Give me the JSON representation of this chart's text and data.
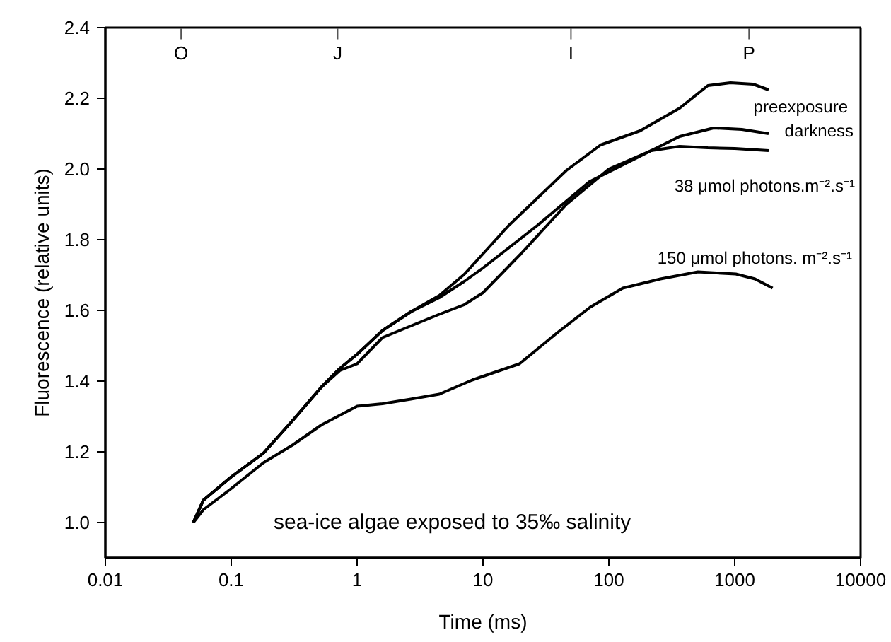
{
  "chart_data": {
    "type": "line",
    "xlabel": "Time (ms)",
    "ylabel": "Fluorescence (relative units)",
    "log": "x",
    "xlim": [
      0.01,
      10000
    ],
    "ylim": [
      0.9,
      2.4
    ],
    "xticks": [
      0.01,
      0.1,
      1,
      10,
      100,
      1000,
      10000
    ],
    "yticks": [
      {
        "value": 1.0,
        "label": "1.0"
      },
      1.2,
      1.4,
      1.6,
      1.8,
      {
        "value": 2.0,
        "label": "2.0"
      },
      2.2,
      2.4
    ],
    "ref_lines": [
      {
        "axis": "x",
        "value": 0.04,
        "label": "O"
      },
      {
        "axis": "x",
        "value": 0.7,
        "label": "J"
      },
      {
        "axis": "x",
        "value": 50,
        "label": "I"
      },
      {
        "axis": "x",
        "value": 1300,
        "label": "P"
      }
    ],
    "grid": false,
    "marker": "none",
    "line_style": "solid",
    "series": [
      {
        "color": "#000000",
        "x": [
          0.05,
          0.06,
          0.1,
          0.18,
          0.31,
          0.52,
          0.73,
          1.0,
          1.59,
          2.67,
          4.5,
          7.1,
          10,
          16,
          46,
          86,
          177,
          365,
          612,
          925,
          1400,
          1860
        ],
        "values": [
          1.0,
          1.063,
          1.129,
          1.196,
          1.29,
          1.383,
          1.436,
          1.476,
          1.543,
          1.596,
          1.642,
          1.702,
          1.76,
          1.84,
          1.996,
          2.068,
          2.108,
          2.172,
          2.236,
          2.244,
          2.24,
          2.224
        ]
      },
      {
        "color": "#000000",
        "x": [
          0.05,
          0.06,
          0.1,
          0.18,
          0.31,
          0.52,
          0.73,
          1.0,
          1.59,
          2.67,
          4.5,
          7.1,
          10,
          27,
          70,
          217,
          365,
          680,
          1140,
          1860
        ],
        "values": [
          1.0,
          1.063,
          1.129,
          1.196,
          1.29,
          1.383,
          1.436,
          1.476,
          1.543,
          1.596,
          1.636,
          1.682,
          1.72,
          1.84,
          1.964,
          2.052,
          2.092,
          2.116,
          2.112,
          2.1
        ]
      },
      {
        "color": "#000000",
        "x": [
          0.05,
          0.06,
          0.1,
          0.18,
          0.31,
          0.52,
          0.73,
          1.0,
          1.59,
          2.67,
          4.5,
          7.1,
          10,
          20,
          46,
          100,
          217,
          365,
          612,
          1000,
          1860
        ],
        "values": [
          1.0,
          1.063,
          1.129,
          1.196,
          1.29,
          1.383,
          1.43,
          1.449,
          1.523,
          1.556,
          1.589,
          1.616,
          1.65,
          1.76,
          1.9,
          2.0,
          2.052,
          2.064,
          2.06,
          2.058,
          2.052
        ]
      },
      {
        "color": "#000000",
        "x": [
          0.05,
          0.06,
          0.1,
          0.18,
          0.31,
          0.52,
          1.0,
          1.59,
          2.67,
          4.5,
          8.2,
          19.5,
          38.7,
          71,
          129,
          257,
          510,
          1020,
          1450,
          2000
        ],
        "values": [
          1.0,
          1.036,
          1.096,
          1.169,
          1.22,
          1.276,
          1.329,
          1.336,
          1.349,
          1.363,
          1.403,
          1.449,
          1.536,
          1.609,
          1.663,
          1.689,
          1.709,
          1.703,
          1.689,
          1.663
        ]
      }
    ],
    "annotations": [
      "preexposure",
      "darkness",
      "38 μmol photons.m⁻².s⁻¹",
      "150 μmol photons. m⁻².s⁻¹",
      "sea-ice algae exposed to 35‰ salinity"
    ]
  }
}
